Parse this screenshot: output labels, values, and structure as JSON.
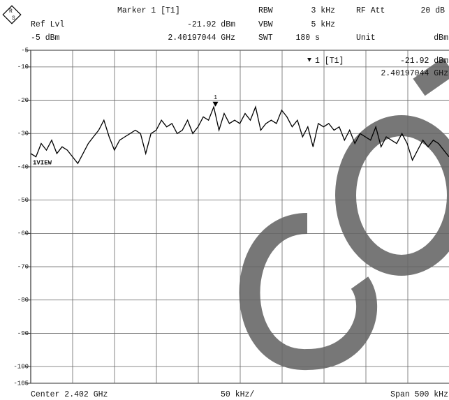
{
  "chart_data": {
    "type": "line",
    "header": {
      "marker_title": "Marker 1 [T1]",
      "marker_level": "-21.92 dBm",
      "marker_freq": "2.40197044 GHz",
      "ref_lvl_label": "Ref Lvl",
      "ref_lvl": "-5 dBm",
      "rbw_label": "RBW",
      "rbw": "3 kHz",
      "vbw_label": "VBW",
      "vbw": "5 kHz",
      "swt_label": "SWT",
      "swt": "180 s",
      "rf_att_label": "RF Att",
      "rf_att": "20 dB",
      "unit_label": "Unit",
      "unit": "dBm"
    },
    "marker_box": {
      "title": "1 [T1]",
      "level": "-21.92 dBm",
      "freq": "2.40197044 GHz"
    },
    "marker": {
      "label": "1",
      "x": 2.40197044,
      "value": -21.92
    },
    "trace_label": "1VIEW",
    "footer": {
      "center": "Center 2.402 GHz",
      "div": "50 kHz/",
      "span": "Span 500 kHz"
    },
    "xlim": [
      2.40175,
      2.40225
    ],
    "ylim": [
      -105,
      -5
    ],
    "yticks": [
      -5,
      -10,
      -20,
      -30,
      -40,
      -50,
      -60,
      -70,
      -80,
      -90,
      -100,
      -105
    ],
    "color": "#000000",
    "grid": true,
    "values": [
      -36,
      -37,
      -33,
      -35,
      -32,
      -36,
      -34,
      -35,
      -37,
      -39,
      -36,
      -33,
      -31,
      -29,
      -26,
      -31,
      -35,
      -32,
      -31,
      -30,
      -29,
      -30,
      -36,
      -30,
      -29,
      -26,
      -28,
      -27,
      -30,
      -29,
      -26,
      -30,
      -28,
      -25,
      -26,
      -22,
      -29,
      -24,
      -27,
      -26,
      -27,
      -24,
      -26,
      -22,
      -29,
      -27,
      -26,
      -27,
      -23,
      -25,
      -28,
      -26,
      -31,
      -28,
      -34,
      -27,
      -28,
      -27,
      -29,
      -28,
      -32,
      -29,
      -33,
      -30,
      -31,
      -32,
      -28,
      -34,
      -31,
      -32,
      -33,
      -30,
      -33,
      -38,
      -35,
      -32,
      -34,
      -32,
      -33,
      -35,
      -37
    ]
  }
}
